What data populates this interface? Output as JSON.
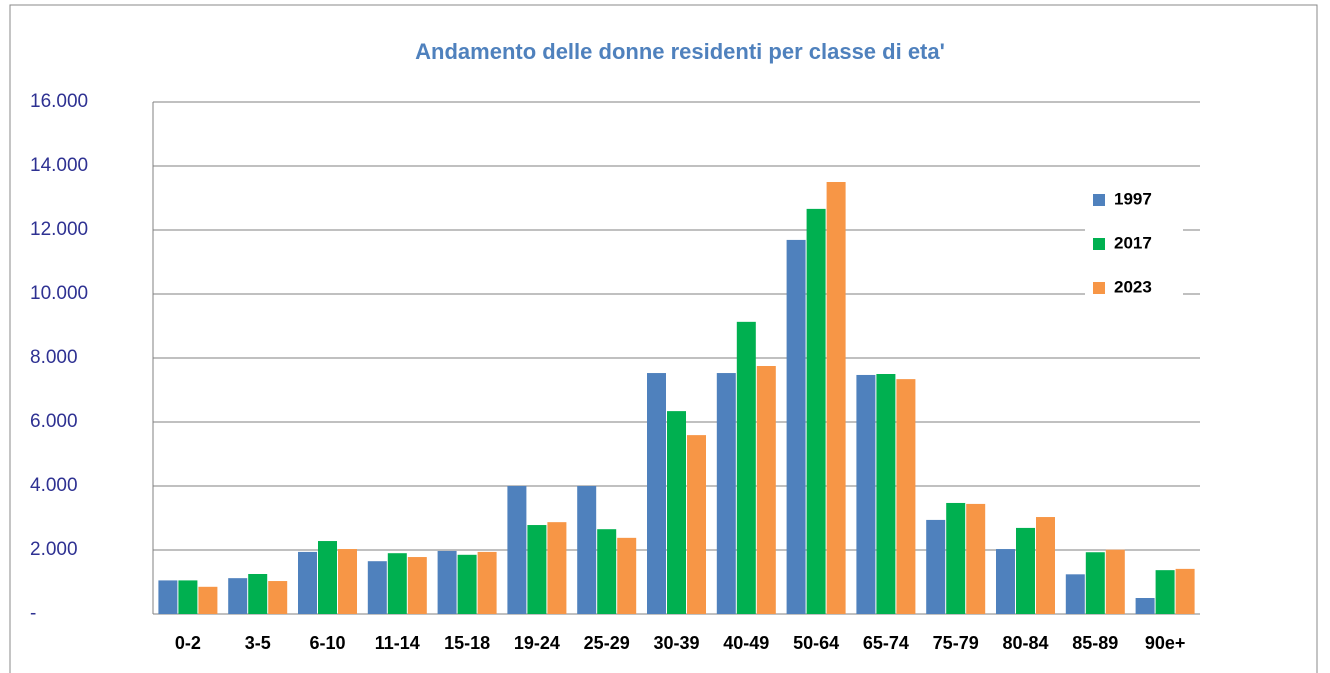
{
  "chart_data": {
    "type": "bar",
    "title": "Andamento delle donne residenti per classe di eta'",
    "categories": [
      "0-2",
      "3-5",
      "6-10",
      "11-14",
      "15-18",
      "19-24",
      "25-29",
      "30-39",
      "40-49",
      "50-64",
      "65-74",
      "75-79",
      "80-84",
      "85-89",
      "90e+"
    ],
    "series": [
      {
        "name": "1997",
        "color": "#4f81bd",
        "values": [
          1050,
          1120,
          1940,
          1650,
          1970,
          4000,
          4000,
          7530,
          7530,
          11690,
          7470,
          2940,
          2030,
          1240,
          500
        ]
      },
      {
        "name": "2017",
        "color": "#00b050",
        "values": [
          1050,
          1250,
          2280,
          1900,
          1850,
          2780,
          2650,
          6340,
          9130,
          12660,
          7500,
          3470,
          2690,
          1930,
          1370
        ]
      },
      {
        "name": "2023",
        "color": "#f79646",
        "values": [
          850,
          1030,
          2030,
          1780,
          1940,
          2870,
          2380,
          5590,
          7750,
          13500,
          7340,
          3440,
          3030,
          2010,
          1410
        ]
      }
    ],
    "ylim": [
      0,
      16000
    ],
    "yticks": [
      {
        "value": 0,
        "label": "-"
      },
      {
        "value": 2000,
        "label": "2.000"
      },
      {
        "value": 4000,
        "label": "4.000"
      },
      {
        "value": 6000,
        "label": "6.000"
      },
      {
        "value": 8000,
        "label": "8.000"
      },
      {
        "value": 10000,
        "label": "10.000"
      },
      {
        "value": 12000,
        "label": "12.000"
      },
      {
        "value": 14000,
        "label": "14.000"
      },
      {
        "value": 16000,
        "label": "16.000"
      }
    ],
    "grid": true,
    "legend": "right"
  }
}
